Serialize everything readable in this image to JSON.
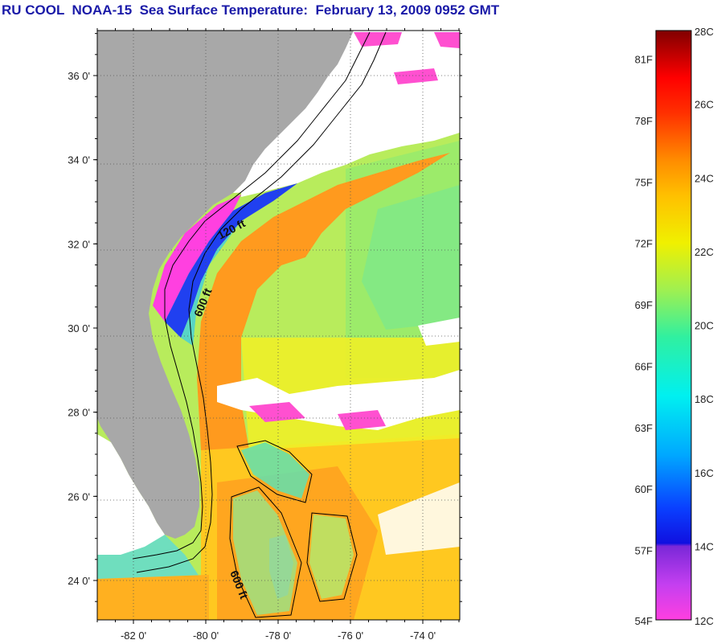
{
  "title": "RU COOL  NOAA-15  Sea Surface Temperature:  February 13, 2009 0952 GMT",
  "map": {
    "lat_ticks": [
      {
        "label": "36 0'",
        "lat": 36
      },
      {
        "label": "34 0'",
        "lat": 34
      },
      {
        "label": "32 0'",
        "lat": 32
      },
      {
        "label": "30 0'",
        "lat": 30
      },
      {
        "label": "28 0'",
        "lat": 28
      },
      {
        "label": "26 0'",
        "lat": 26
      },
      {
        "label": "24 0'",
        "lat": 24
      }
    ],
    "lon_ticks": [
      {
        "label": "-82 0'",
        "lon": -82
      },
      {
        "label": "-80 0'",
        "lon": -80
      },
      {
        "label": "-78 0'",
        "lon": -78
      },
      {
        "label": "-76 0'",
        "lon": -76
      },
      {
        "label": "-74 0'",
        "lon": -74
      }
    ],
    "contour_labels": {
      "shelf_120": "120 ft",
      "shelf_600_north": "600 ft",
      "shelf_600_south": "600 ft"
    },
    "colors": {
      "land": "#a8a8a8",
      "cloud": "#ffffff"
    }
  },
  "colorbar": {
    "fahrenheit_labels": [
      "81F",
      "78F",
      "75F",
      "72F",
      "69F",
      "66F",
      "63F",
      "60F",
      "57F",
      "54F"
    ],
    "celsius_labels": [
      "28C",
      "26C",
      "24C",
      "22C",
      "20C",
      "18C",
      "16C",
      "14C",
      "12C"
    ],
    "range_c": [
      12,
      28
    ],
    "range_f": [
      54,
      82.4
    ]
  }
}
